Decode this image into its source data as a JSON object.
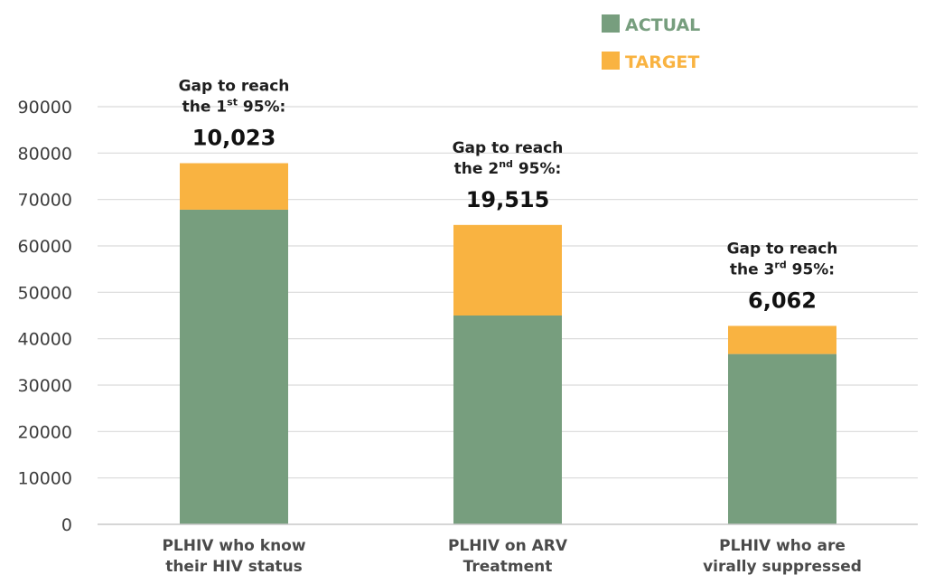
{
  "chart_data": {
    "type": "bar",
    "stacked": true,
    "categories": [
      [
        "PLHIV who know",
        "their HIV status"
      ],
      [
        "PLHIV on ARV",
        "Treatment"
      ],
      [
        "PLHIV who are",
        "virally suppressed"
      ]
    ],
    "series": [
      {
        "name": "ACTUAL",
        "values": [
          67800,
          45000,
          36700
        ],
        "color": "#779e7e"
      },
      {
        "name": "TARGET",
        "values": [
          10023,
          19515,
          6062
        ],
        "color": "#f9b341"
      }
    ],
    "annotations": [
      {
        "line1": "Gap to reach",
        "line2_pre": "the 1",
        "line2_sup": "st",
        "line2_post": " 95%:",
        "value": "10,023"
      },
      {
        "line1": "Gap to reach",
        "line2_pre": "the 2",
        "line2_sup": "nd",
        "line2_post": " 95%:",
        "value": "19,515"
      },
      {
        "line1": "Gap to reach",
        "line2_pre": "the 3",
        "line2_sup": "rd",
        "line2_post": " 95%:",
        "value": "6,062"
      }
    ],
    "ylim": [
      0,
      90000
    ],
    "yticks": [
      "0",
      "10000",
      "20000",
      "30000",
      "40000",
      "50000",
      "60000",
      "70000",
      "80000",
      "90000"
    ],
    "grid": true,
    "legend_position": "top-right",
    "title": "",
    "xlabel": "",
    "ylabel": ""
  }
}
